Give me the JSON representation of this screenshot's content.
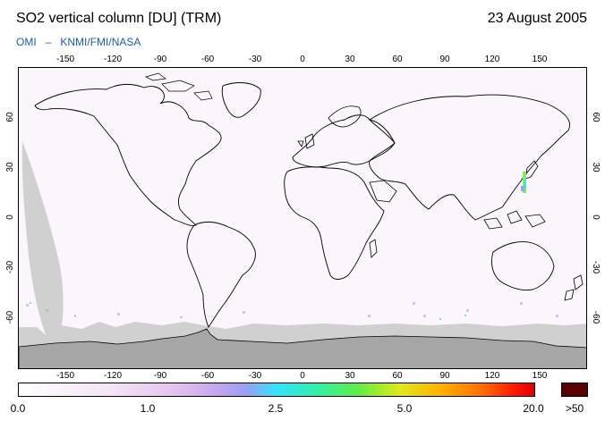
{
  "header": {
    "title": "SO2 vertical column [DU] (TRM)",
    "date": "23 August 2005",
    "credit_left": "OMI",
    "credit_sep": "–",
    "credit_right": "KNMI/FMI/NASA"
  },
  "map": {
    "lon_ticks": [
      "-150",
      "-120",
      "-90",
      "-60",
      "-30",
      "0",
      "30",
      "60",
      "90",
      "120",
      "150"
    ],
    "lat_ticks": [
      "60",
      "30",
      "0",
      "-30",
      "-60"
    ],
    "colors": {
      "background": "#fbf6fc",
      "land_outline": "#000000",
      "no_data": "#d0d0d0",
      "antarctica": "#a6a6a6"
    }
  },
  "colorbar": {
    "labels": [
      "0.0",
      "1.0",
      "2.5",
      "5.0",
      "20.0"
    ],
    "overflow_label": ">50",
    "overflow_color": "#5a0000"
  }
}
